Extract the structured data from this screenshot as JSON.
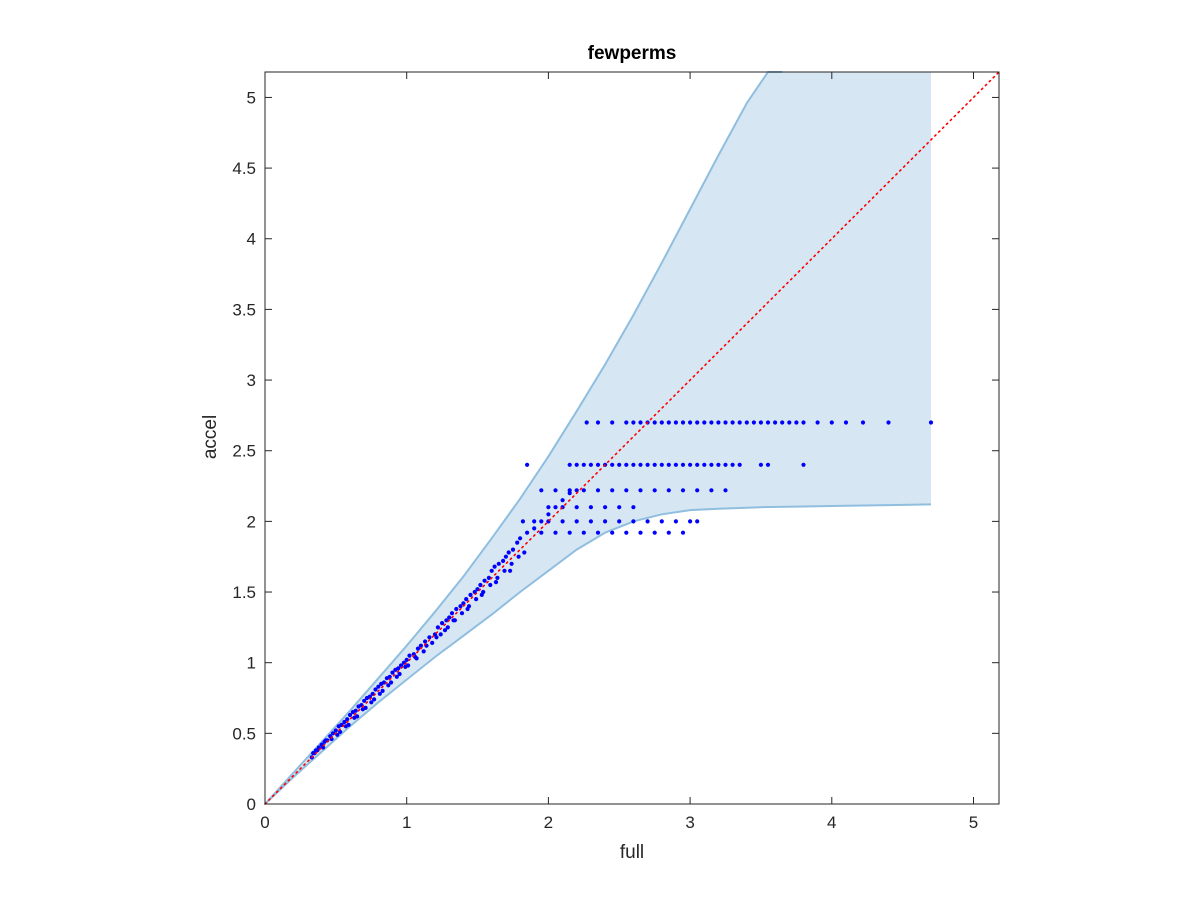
{
  "chart_data": {
    "type": "scatter",
    "title": "fewperms",
    "xlabel": "full",
    "ylabel": "accel",
    "xlim": [
      0,
      5.18
    ],
    "ylim": [
      0,
      5.18
    ],
    "xticks": [
      0,
      1,
      2,
      3,
      4,
      5
    ],
    "yticks": [
      0,
      0.5,
      1,
      1.5,
      2,
      2.5,
      3,
      3.5,
      4,
      4.5,
      5
    ],
    "xtick_labels": [
      "0",
      "1",
      "2",
      "3",
      "4",
      "5"
    ],
    "ytick_labels": [
      "0",
      "0.5",
      "1",
      "1.5",
      "2",
      "2.5",
      "3",
      "3.5",
      "4",
      "4.5",
      "5"
    ],
    "grid": false,
    "legend": "none",
    "colors": {
      "points": "#0000ff",
      "band_fill": "#d6e7f3",
      "band_edge": "#8fbedf",
      "reference_line": "#ff0000",
      "axes": "#262626"
    },
    "band": {
      "upper": {
        "x": [
          0,
          0.2,
          0.4,
          0.6,
          0.8,
          1.0,
          1.2,
          1.4,
          1.6,
          1.8,
          2.0,
          2.2,
          2.4,
          2.6,
          2.8,
          3.0,
          3.2,
          3.4,
          3.55,
          3.65
        ],
        "y": [
          0,
          0.22,
          0.44,
          0.66,
          0.89,
          1.12,
          1.36,
          1.61,
          1.88,
          2.16,
          2.46,
          2.78,
          3.11,
          3.46,
          3.83,
          4.21,
          4.59,
          4.96,
          5.18,
          5.18
        ]
      },
      "right_x": 4.7,
      "lower": {
        "x": [
          0,
          0.2,
          0.4,
          0.6,
          0.8,
          1.0,
          1.2,
          1.4,
          1.6,
          1.8,
          2.0,
          2.2,
          2.4,
          2.6,
          2.8,
          3.0,
          3.2,
          3.5,
          3.8,
          4.1,
          4.4,
          4.7
        ],
        "y": [
          0,
          0.19,
          0.37,
          0.55,
          0.72,
          0.88,
          1.04,
          1.19,
          1.34,
          1.5,
          1.65,
          1.8,
          1.92,
          2.0,
          2.05,
          2.08,
          2.09,
          2.1,
          2.105,
          2.11,
          2.115,
          2.12
        ]
      }
    },
    "reference_line": {
      "x": [
        0,
        5.18
      ],
      "y": [
        0,
        5.18
      ],
      "style": "dotted"
    },
    "series": [
      {
        "x": [
          0.33,
          0.35,
          0.36,
          0.38,
          0.4,
          0.42,
          0.44,
          0.46,
          0.48,
          0.5,
          0.52,
          0.54,
          0.56,
          0.58,
          0.6,
          0.62,
          0.64,
          0.66,
          0.68,
          0.7,
          0.72,
          0.74,
          0.76,
          0.78,
          0.8,
          0.82,
          0.84,
          0.86,
          0.88,
          0.9,
          0.92,
          0.94,
          0.96,
          0.98,
          1.0,
          1.02,
          1.05,
          1.08,
          1.1,
          1.13,
          1.16,
          1.2,
          1.22,
          1.25,
          1.28,
          1.3,
          1.32,
          1.35,
          1.38,
          1.4,
          1.42,
          1.45,
          1.48,
          1.5,
          1.52,
          1.55,
          1.58,
          1.6,
          1.62,
          1.65,
          1.68,
          1.7,
          1.72,
          1.75,
          1.78,
          1.8,
          1.85,
          1.9,
          1.95,
          2.0,
          2.05,
          2.1,
          2.15,
          2.2,
          0.34,
          0.41,
          0.47,
          0.53,
          0.59,
          0.65,
          0.71,
          0.77,
          0.83,
          0.89,
          0.95,
          1.01,
          1.07,
          1.12,
          1.18,
          1.24,
          1.29,
          1.34,
          1.39,
          1.44,
          1.49,
          1.54,
          1.59,
          1.64,
          1.69,
          1.74,
          1.79,
          1.83,
          0.37,
          0.43,
          0.51,
          0.57,
          0.63,
          0.69,
          0.75,
          0.81,
          0.87,
          0.93,
          0.99,
          1.06,
          1.14,
          1.21,
          1.27,
          1.33,
          1.43,
          1.53,
          1.63,
          1.73
        ],
        "y": [
          0.33,
          0.36,
          0.38,
          0.4,
          0.42,
          0.44,
          0.45,
          0.48,
          0.5,
          0.52,
          0.55,
          0.56,
          0.58,
          0.6,
          0.63,
          0.65,
          0.66,
          0.69,
          0.7,
          0.73,
          0.75,
          0.76,
          0.78,
          0.81,
          0.83,
          0.85,
          0.86,
          0.89,
          0.9,
          0.93,
          0.95,
          0.96,
          0.98,
          1.0,
          1.02,
          1.05,
          1.06,
          1.1,
          1.12,
          1.15,
          1.18,
          1.2,
          1.25,
          1.28,
          1.3,
          1.32,
          1.35,
          1.38,
          1.4,
          1.42,
          1.45,
          1.48,
          1.5,
          1.52,
          1.55,
          1.58,
          1.6,
          1.65,
          1.68,
          1.7,
          1.72,
          1.75,
          1.78,
          1.8,
          1.85,
          1.88,
          1.92,
          1.95,
          2.0,
          2.05,
          2.1,
          2.15,
          2.2,
          2.22,
          0.36,
          0.4,
          0.46,
          0.51,
          0.56,
          0.62,
          0.68,
          0.74,
          0.8,
          0.86,
          0.92,
          0.98,
          1.03,
          1.08,
          1.14,
          1.2,
          1.25,
          1.3,
          1.35,
          1.4,
          1.45,
          1.5,
          1.55,
          1.6,
          1.65,
          1.7,
          1.75,
          1.78,
          0.38,
          0.45,
          0.49,
          0.55,
          0.61,
          0.67,
          0.72,
          0.78,
          0.84,
          0.9,
          0.97,
          1.04,
          1.12,
          1.18,
          1.23,
          1.3,
          1.38,
          1.48,
          1.57,
          1.65
        ]
      },
      {
        "x": [
          1.82,
          1.9,
          2.0,
          2.1,
          2.2,
          2.3,
          2.4,
          2.5,
          2.6,
          2.7,
          2.8,
          2.9,
          3.0,
          3.05,
          1.95,
          2.05,
          2.15,
          2.25,
          2.35,
          2.45,
          2.55,
          2.65,
          2.75,
          2.85,
          2.95
        ],
        "y": [
          2.0,
          2.0,
          2.0,
          2.0,
          2.0,
          2.0,
          2.0,
          2.0,
          2.0,
          2.0,
          2.0,
          2.0,
          2.0,
          2.0,
          1.92,
          1.92,
          1.92,
          1.92,
          1.92,
          1.92,
          1.92,
          1.92,
          1.92,
          1.92,
          1.92
        ]
      },
      {
        "x": [
          1.95,
          2.05,
          2.15,
          2.25,
          2.35,
          2.45,
          2.55,
          2.65,
          2.75,
          2.85,
          2.95,
          3.05,
          3.15,
          3.25,
          2.0,
          2.1,
          2.2,
          2.3,
          2.4,
          2.5,
          2.6
        ],
        "y": [
          2.22,
          2.22,
          2.22,
          2.22,
          2.22,
          2.22,
          2.22,
          2.22,
          2.22,
          2.22,
          2.22,
          2.22,
          2.22,
          2.22,
          2.1,
          2.1,
          2.1,
          2.1,
          2.1,
          2.1,
          2.1
        ]
      },
      {
        "x": [
          1.85,
          2.15,
          2.2,
          2.25,
          2.3,
          2.35,
          2.4,
          2.45,
          2.5,
          2.55,
          2.6,
          2.65,
          2.7,
          2.75,
          2.8,
          2.85,
          2.9,
          2.95,
          3.0,
          3.05,
          3.1,
          3.15,
          3.2,
          3.25,
          3.3,
          3.35,
          3.5,
          3.55,
          3.8
        ],
        "y": [
          2.4,
          2.4,
          2.4,
          2.4,
          2.4,
          2.4,
          2.4,
          2.4,
          2.4,
          2.4,
          2.4,
          2.4,
          2.4,
          2.4,
          2.4,
          2.4,
          2.4,
          2.4,
          2.4,
          2.4,
          2.4,
          2.4,
          2.4,
          2.4,
          2.4,
          2.4,
          2.4,
          2.4,
          2.4
        ]
      },
      {
        "x": [
          2.27,
          2.35,
          2.45,
          2.55,
          2.6,
          2.65,
          2.7,
          2.75,
          2.8,
          2.85,
          2.9,
          2.95,
          3.0,
          3.05,
          3.1,
          3.15,
          3.2,
          3.25,
          3.3,
          3.35,
          3.4,
          3.45,
          3.5,
          3.55,
          3.6,
          3.65,
          3.7,
          3.75,
          3.8,
          3.9,
          4.0,
          4.1,
          4.22,
          4.4,
          4.7
        ],
        "y": [
          2.7,
          2.7,
          2.7,
          2.7,
          2.7,
          2.7,
          2.7,
          2.7,
          2.7,
          2.7,
          2.7,
          2.7,
          2.7,
          2.7,
          2.7,
          2.7,
          2.7,
          2.7,
          2.7,
          2.7,
          2.7,
          2.7,
          2.7,
          2.7,
          2.7,
          2.7,
          2.7,
          2.7,
          2.7,
          2.7,
          2.7,
          2.7,
          2.7,
          2.7,
          2.7
        ]
      }
    ]
  }
}
